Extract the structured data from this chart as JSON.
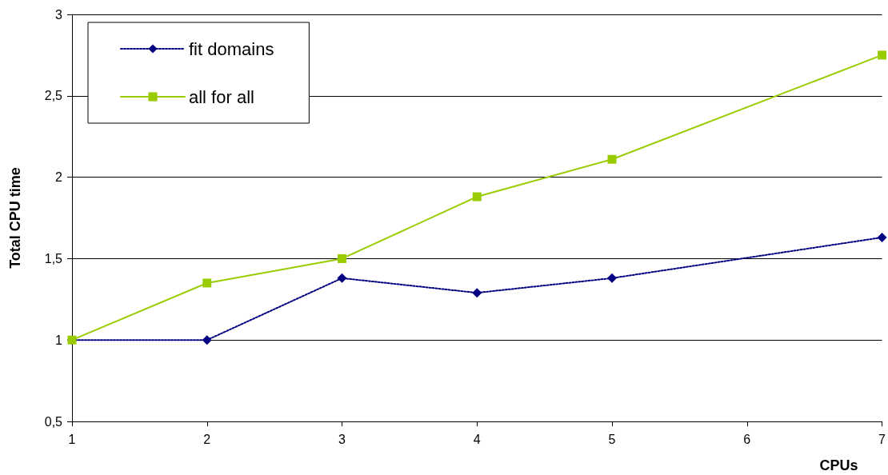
{
  "chart_data": {
    "type": "line",
    "xlabel": "CPUs",
    "ylabel": "Total CPU time",
    "xlim": [
      1,
      7
    ],
    "xticks": [
      1,
      2,
      3,
      4,
      5,
      6,
      7
    ],
    "ylim": [
      0.5,
      3
    ],
    "yticks": [
      {
        "value": 0.5,
        "label": "0,5"
      },
      1,
      {
        "value": 1.5,
        "label": "1,5"
      },
      2,
      {
        "value": 2.5,
        "label": "2,5"
      },
      3
    ],
    "grid": "y",
    "legend": "top left",
    "series": [
      {
        "name": "fit domains",
        "color": "#000080",
        "marker": "diamond",
        "line_style": "dotted",
        "x": [
          1,
          2,
          3,
          4,
          5,
          7
        ],
        "values": [
          1.0,
          1.0,
          1.38,
          1.29,
          1.38,
          1.63
        ]
      },
      {
        "name": "all for all",
        "color": "#99cc00",
        "marker": "square",
        "line_style": "solid",
        "x": [
          1,
          2,
          3,
          4,
          5,
          7
        ],
        "values": [
          1.0,
          1.35,
          1.5,
          1.88,
          2.11,
          2.75
        ]
      }
    ]
  }
}
